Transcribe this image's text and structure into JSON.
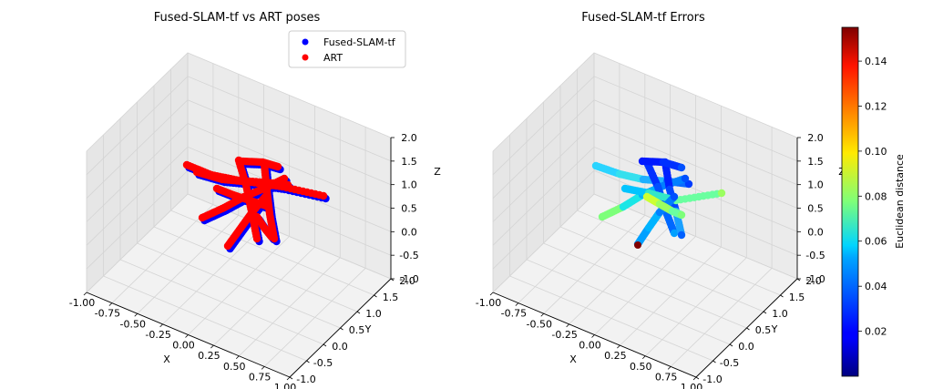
{
  "chart_data": [
    {
      "type": "scatter",
      "projection": "3d",
      "title": "Fused-SLAM-tf vs ART poses",
      "xlabel": "X",
      "ylabel": "Y",
      "zlabel": "Z",
      "xlim": [
        -1.0,
        1.0
      ],
      "ylim": [
        -1.0,
        2.0
      ],
      "zlim": [
        -1.0,
        2.0
      ],
      "xticks": [
        "-1.00",
        "-0.75",
        "-0.50",
        "-0.25",
        "0.00",
        "0.25",
        "0.50",
        "0.75",
        "1.00"
      ],
      "yticks": [
        "-1.0",
        "-0.5",
        "0.0",
        "0.5",
        "1.0",
        "1.5",
        "2.0"
      ],
      "zticks": [
        "-1.0",
        "-0.5",
        "0.0",
        "0.5",
        "1.0",
        "1.5",
        "2.0"
      ],
      "grid": true,
      "legend_position": "top-right",
      "series": [
        {
          "name": "Fused-SLAM-tf",
          "color": "#0000ff"
        },
        {
          "name": "ART",
          "color": "#ff0000"
        }
      ]
    },
    {
      "type": "scatter",
      "projection": "3d",
      "title": "Fused-SLAM-tf Errors",
      "xlabel": "X",
      "ylabel": "Y",
      "zlabel": "Z",
      "xlim": [
        -1.0,
        1.0
      ],
      "ylim": [
        -1.0,
        2.0
      ],
      "zlim": [
        -1.0,
        2.0
      ],
      "xticks": [
        "-1.00",
        "-0.75",
        "-0.50",
        "-0.25",
        "0.00",
        "0.25",
        "0.50",
        "0.75",
        "1.00"
      ],
      "yticks": [
        "-1.0",
        "-0.5",
        "0.0",
        "0.5",
        "1.0",
        "1.5",
        "2.0"
      ],
      "zticks": [
        "-1.0",
        "-0.5",
        "0.0",
        "0.5",
        "1.0",
        "1.5",
        "2.0"
      ],
      "grid": true,
      "colormap": "jet",
      "colorbar": {
        "label": "Euclidean distance",
        "range": [
          0.0,
          0.155
        ],
        "ticks": [
          "0.02",
          "0.04",
          "0.06",
          "0.08",
          "0.10",
          "0.12",
          "0.14"
        ]
      }
    }
  ]
}
